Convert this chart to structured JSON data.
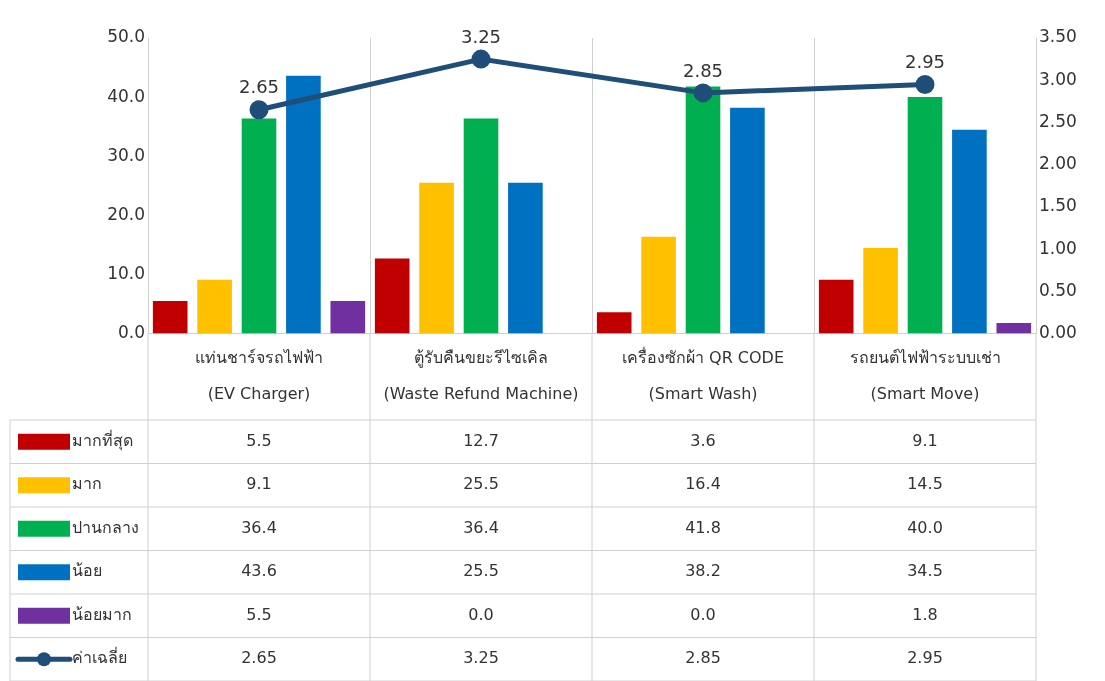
{
  "chart_data": {
    "type": "bar",
    "categories": [
      "แท่นชาร์จรถไฟฟ้า\n(EV Charger)",
      "ตู้รับคืนขยะรีไซเคิล\n(Waste Refund Machine)",
      "เครื่องซักผ้า QR CODE\n(Smart Wash)",
      "รถยนต์ไฟฟ้าระบบเช่า\n(Smart Move)"
    ],
    "series": [
      {
        "name": "มากที่สุด",
        "color": "#c00000",
        "values": [
          5.5,
          12.7,
          3.6,
          9.1
        ],
        "value_labels": [
          "5.5",
          "12.7",
          "3.6",
          "9.1"
        ]
      },
      {
        "name": "มาก",
        "color": "#ffc000",
        "values": [
          9.1,
          25.5,
          16.4,
          14.5
        ],
        "value_labels": [
          "9.1",
          "25.5",
          "16.4",
          "14.5"
        ]
      },
      {
        "name": "ปานกลาง",
        "color": "#00b050",
        "values": [
          36.4,
          36.4,
          41.8,
          40.0
        ],
        "value_labels": [
          "36.4",
          "36.4",
          "41.8",
          "40.0"
        ]
      },
      {
        "name": "น้อย",
        "color": "#0070c0",
        "values": [
          43.6,
          25.5,
          38.2,
          34.5
        ],
        "value_labels": [
          "43.6",
          "25.5",
          "38.2",
          "34.5"
        ]
      },
      {
        "name": "น้อยมาก",
        "color": "#7030a0",
        "values": [
          5.5,
          0.0,
          0.0,
          1.8
        ],
        "value_labels": [
          "5.5",
          "0.0",
          "0.0",
          "1.8"
        ]
      },
      {
        "name": "ค่าเฉลี่ย",
        "type": "line",
        "axis": "y2",
        "color": "#1f4e79",
        "marker": "circle",
        "values": [
          2.65,
          3.25,
          2.85,
          2.95
        ],
        "value_labels": [
          "2.65",
          "3.25",
          "2.85",
          "2.95"
        ]
      }
    ],
    "ylim": [
      0,
      50
    ],
    "yticks": [
      {
        "value": 0,
        "label": "0.0"
      },
      {
        "value": 10,
        "label": "10.0"
      },
      {
        "value": 20,
        "label": "20.0"
      },
      {
        "value": 30,
        "label": "30.0"
      },
      {
        "value": 40,
        "label": "40.0"
      },
      {
        "value": 50,
        "label": "50.0"
      }
    ],
    "y2lim": [
      0,
      3.5
    ],
    "y2ticks": [
      {
        "value": 0,
        "label": "0.00"
      },
      {
        "value": 0.5,
        "label": "0.50"
      },
      {
        "value": 1,
        "label": "1.00"
      },
      {
        "value": 1.5,
        "label": "1.50"
      },
      {
        "value": 2,
        "label": "2.00"
      },
      {
        "value": 2.5,
        "label": "2.50"
      },
      {
        "value": 3,
        "label": "3.00"
      },
      {
        "value": 3.5,
        "label": "3.50"
      }
    ],
    "grid": "x",
    "legend": "bottom"
  }
}
